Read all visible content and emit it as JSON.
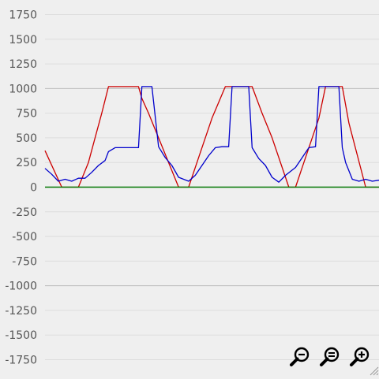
{
  "chart_data": {
    "type": "line",
    "title": "",
    "xlabel": "",
    "ylabel": "",
    "ylim": [
      -1750,
      1750
    ],
    "xlim": [
      0,
      100
    ],
    "yticks": [
      1750,
      1500,
      1250,
      1000,
      750,
      500,
      250,
      0,
      -250,
      -500,
      -750,
      -1000,
      -1250,
      -1500,
      -1750
    ],
    "grid": true,
    "series": [
      {
        "color": "#cc0000",
        "x": [
          0,
          5,
          10,
          13,
          15,
          17,
          19,
          28,
          29,
          31,
          34,
          37,
          40,
          43,
          47,
          50,
          54,
          56,
          58,
          62,
          65,
          68,
          73,
          75,
          79,
          82,
          84,
          85,
          87,
          89,
          91,
          96,
          100
        ],
        "y": [
          370,
          0,
          0,
          250,
          500,
          750,
          1020,
          1020,
          900,
          750,
          500,
          250,
          0,
          0,
          400,
          700,
          1020,
          1020,
          1020,
          1020,
          750,
          500,
          0,
          0,
          400,
          700,
          1020,
          1020,
          1020,
          1020,
          650,
          0,
          0
        ]
      },
      {
        "color": "#0000cc",
        "x": [
          0,
          2,
          4,
          6,
          8,
          10,
          12,
          14,
          16,
          18,
          19,
          21,
          24,
          26,
          28,
          29,
          30,
          32,
          34,
          36,
          38,
          40,
          43,
          45,
          47,
          49,
          51,
          53,
          55,
          56,
          57,
          61,
          62,
          64,
          66,
          68,
          70,
          72,
          75,
          77,
          79,
          81,
          82,
          84,
          88,
          89,
          90,
          92,
          94,
          96,
          98,
          100
        ],
        "y": [
          190,
          130,
          60,
          80,
          60,
          90,
          90,
          150,
          220,
          270,
          360,
          400,
          400,
          400,
          400,
          1020,
          1020,
          1020,
          410,
          300,
          220,
          100,
          60,
          120,
          220,
          320,
          400,
          410,
          410,
          1020,
          1020,
          1020,
          400,
          290,
          220,
          100,
          50,
          120,
          200,
          300,
          400,
          410,
          1020,
          1020,
          1020,
          400,
          250,
          80,
          60,
          80,
          60,
          70
        ]
      },
      {
        "color": "#007700",
        "x": [
          0,
          100
        ],
        "y": [
          0,
          0
        ]
      }
    ]
  },
  "toolbar": {
    "zoom_out_icon": "zoom-out-icon",
    "zoom_reset_icon": "zoom-reset-icon",
    "zoom_in_icon": "zoom-in-icon"
  }
}
